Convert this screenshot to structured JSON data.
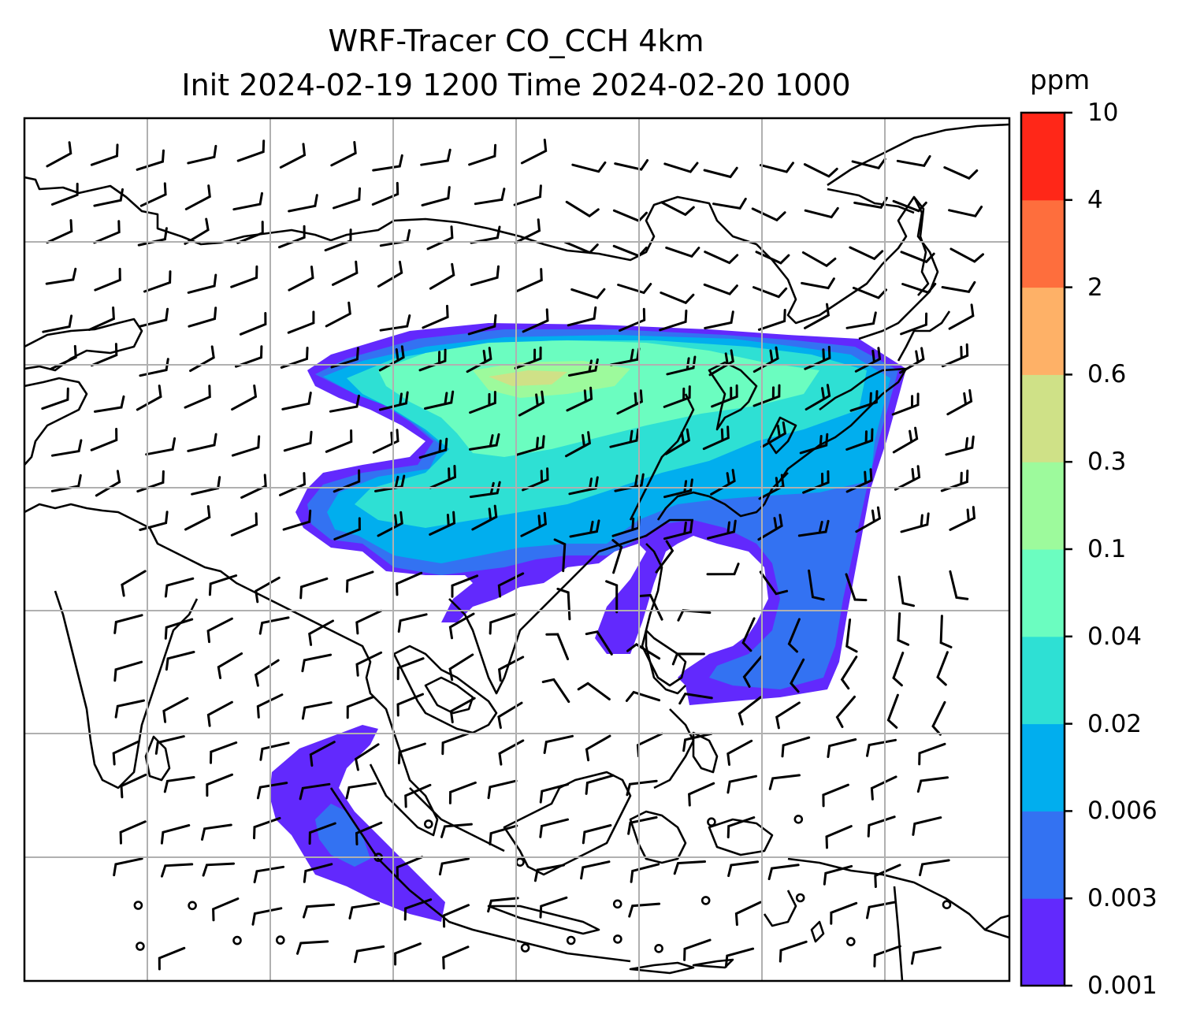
{
  "title": {
    "line1": "WRF-Tracer CO_CCH 4km",
    "line2": "Init 2024-02-19 1200 Time 2024-02-20 1000"
  },
  "colorbar": {
    "unit": "ppm",
    "ticks": [
      "0.001",
      "0.003",
      "0.006",
      "0.02",
      "0.04",
      "0.1",
      "0.3",
      "0.6",
      "2",
      "4",
      "10"
    ],
    "colors": [
      "#6229fd",
      "#3372f2",
      "#01aeee",
      "#2ee0d4",
      "#6bfdc0",
      "#9dfa9c",
      "#cfe187",
      "#feb167",
      "#fe6e3d",
      "#ff2718"
    ]
  },
  "map": {
    "gridlines": true,
    "coastline_color": "#000000",
    "grid_color": "#b0b0b0"
  }
}
